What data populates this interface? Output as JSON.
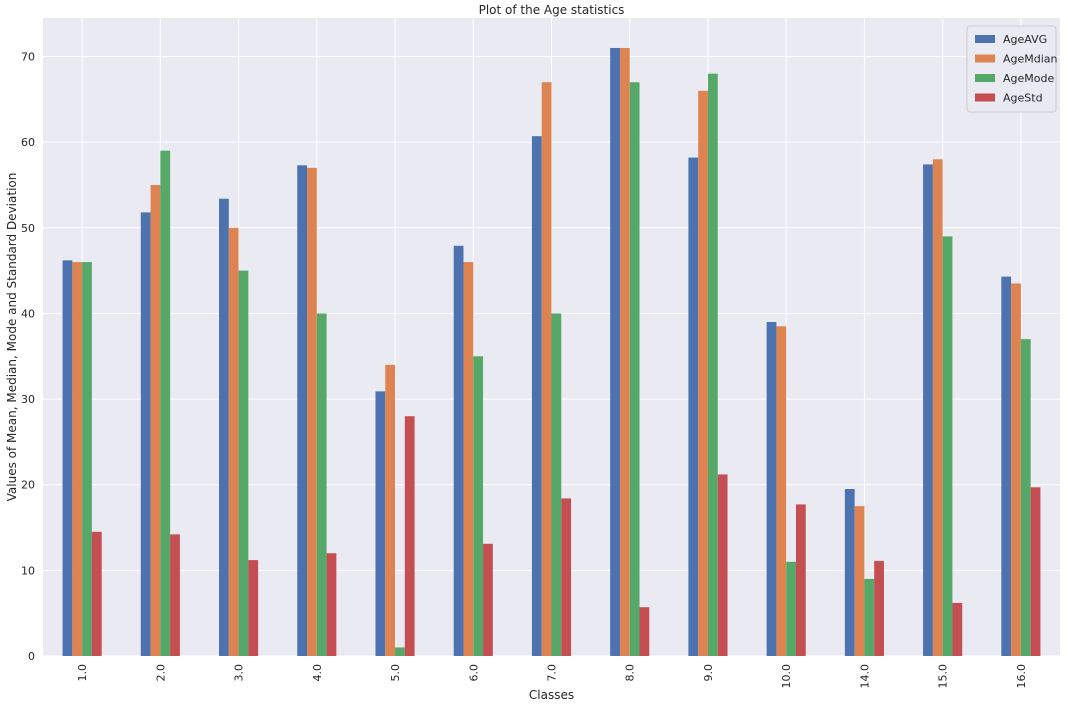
{
  "chart_data": {
    "type": "bar",
    "title": "Plot of the Age statistics",
    "xlabel": "Classes",
    "ylabel": "Values of Mean, Median, Mode and Standard Deviation",
    "categories": [
      "1.0",
      "2.0",
      "3.0",
      "4.0",
      "5.0",
      "6.0",
      "7.0",
      "8.0",
      "9.0",
      "10.0",
      "14.0",
      "15.0",
      "16.0"
    ],
    "ylim": [
      0,
      74.5
    ],
    "yticks": [
      0,
      10,
      20,
      30,
      40,
      50,
      60,
      70
    ],
    "grid": true,
    "legend_position": "top-right",
    "series": [
      {
        "name": "AgeAVG",
        "color": "#4c72b0",
        "values": [
          46.2,
          51.8,
          53.4,
          57.3,
          30.9,
          47.9,
          60.7,
          71.0,
          58.2,
          39.0,
          19.5,
          57.4,
          44.3
        ]
      },
      {
        "name": "AgeMdian",
        "color": "#dd8452",
        "values": [
          46.0,
          55.0,
          50.0,
          57.0,
          34.0,
          46.0,
          67.0,
          71.0,
          66.0,
          38.5,
          17.5,
          58.0,
          43.5
        ]
      },
      {
        "name": "AgeMode",
        "color": "#55a868",
        "values": [
          46.0,
          59.0,
          45.0,
          40.0,
          1.0,
          35.0,
          40.0,
          67.0,
          68.0,
          11.0,
          9.0,
          49.0,
          37.0
        ]
      },
      {
        "name": "AgeStd",
        "color": "#c44e52",
        "values": [
          14.5,
          14.2,
          11.2,
          12.0,
          28.0,
          13.1,
          18.4,
          5.7,
          21.2,
          17.7,
          11.1,
          6.2,
          19.7
        ]
      }
    ]
  },
  "style": {
    "plot_background": "#eaeaf2",
    "grid_color": "#ffffff",
    "text_color": "#262626"
  }
}
